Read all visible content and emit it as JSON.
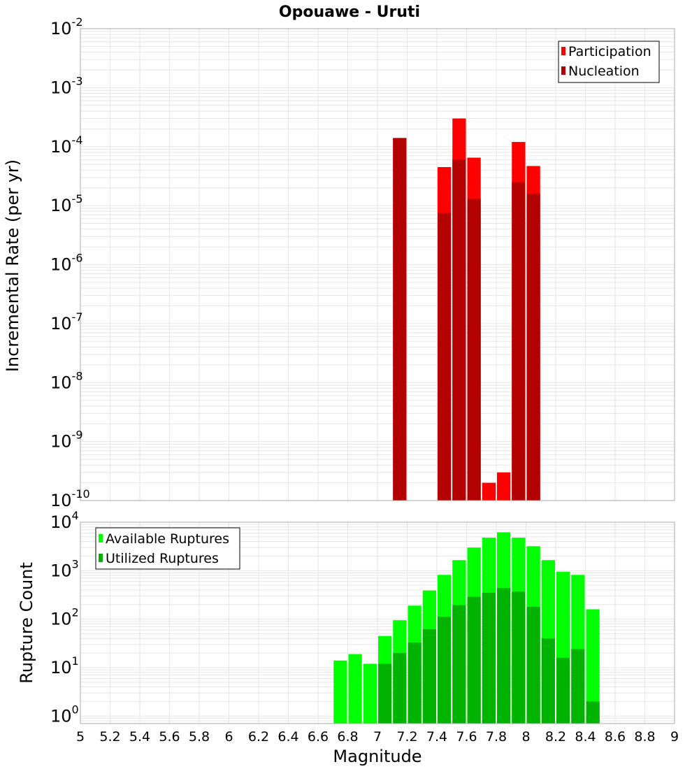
{
  "chart_data": [
    {
      "type": "bar",
      "title": "Opouawe - Uruti",
      "xlabel": "",
      "ylabel": "Incremental Rate (per yr)",
      "yscale": "log",
      "ylim": [
        1e-10,
        0.01
      ],
      "xlim": [
        5,
        9
      ],
      "grid": true,
      "legend_position": "top-right",
      "legend": [
        "Participation",
        "Nucleation"
      ],
      "bar_width": 0.1,
      "series": [
        {
          "name": "Participation",
          "color": "#ff0000",
          "x": [
            7.15,
            7.45,
            7.55,
            7.65,
            7.75,
            7.85,
            7.95,
            8.05
          ],
          "values": [
            0.00014,
            4.5e-05,
            0.0003,
            6.5e-05,
            2e-10,
            3e-10,
            0.00012,
            4.7e-05
          ]
        },
        {
          "name": "Nucleation",
          "color": "#b30000",
          "x": [
            7.15,
            7.45,
            7.55,
            7.65,
            7.95,
            8.05
          ],
          "values": [
            0.00014,
            7.5e-06,
            6e-05,
            1.3e-05,
            2.5e-05,
            1.6e-05
          ]
        }
      ]
    },
    {
      "type": "bar",
      "title": "",
      "xlabel": "Magnitude",
      "ylabel": "Rupture Count",
      "yscale": "log",
      "ylim": [
        0.7,
        10000
      ],
      "xlim": [
        5,
        9
      ],
      "grid": true,
      "legend_position": "top-left",
      "legend": [
        "Available Ruptures",
        "Utilized Ruptures"
      ],
      "bar_width": 0.1,
      "series": [
        {
          "name": "Available Ruptures",
          "color": "#00ff00",
          "x": [
            6.75,
            6.85,
            6.95,
            7.05,
            7.15,
            7.25,
            7.35,
            7.45,
            7.55,
            7.65,
            7.75,
            7.85,
            7.95,
            8.05,
            8.15,
            8.25,
            8.35,
            8.45
          ],
          "values": [
            14,
            19,
            12,
            45,
            95,
            190,
            390,
            820,
            1650,
            3000,
            4800,
            6200,
            4800,
            3200,
            1650,
            950,
            820,
            160
          ]
        },
        {
          "name": "Utilized Ruptures",
          "color": "#00b300",
          "x": [
            7.05,
            7.15,
            7.25,
            7.35,
            7.45,
            7.55,
            7.65,
            7.75,
            7.85,
            7.95,
            8.05,
            8.15,
            8.25,
            8.35,
            8.45
          ],
          "values": [
            12,
            20,
            33,
            62,
            112,
            195,
            290,
            350,
            440,
            370,
            180,
            40,
            16,
            24,
            2
          ]
        }
      ]
    }
  ],
  "x_ticks": [
    "5",
    "5.2",
    "5.4",
    "5.6",
    "5.8",
    "6",
    "6.2",
    "6.4",
    "6.6",
    "6.8",
    "7",
    "7.2",
    "7.4",
    "7.6",
    "7.8",
    "8",
    "8.2",
    "8.4",
    "8.6",
    "8.8",
    "9"
  ],
  "top_y_ticks": [
    {
      "base": "10",
      "exp": "-2",
      "v": -2
    },
    {
      "base": "10",
      "exp": "-3",
      "v": -3
    },
    {
      "base": "10",
      "exp": "-4",
      "v": -4
    },
    {
      "base": "10",
      "exp": "-5",
      "v": -5
    },
    {
      "base": "10",
      "exp": "-6",
      "v": -6
    },
    {
      "base": "10",
      "exp": "-7",
      "v": -7
    },
    {
      "base": "10",
      "exp": "-8",
      "v": -8
    },
    {
      "base": "10",
      "exp": "-9",
      "v": -9
    },
    {
      "base": "10",
      "exp": "-10",
      "v": -10
    }
  ],
  "bottom_y_ticks": [
    {
      "base": "10",
      "exp": "4",
      "v": 4
    },
    {
      "base": "10",
      "exp": "3",
      "v": 3
    },
    {
      "base": "10",
      "exp": "2",
      "v": 2
    },
    {
      "base": "10",
      "exp": "1",
      "v": 1
    },
    {
      "base": "10",
      "exp": "0",
      "v": 0
    }
  ],
  "colors": {
    "plot_border": "#aaaaaa",
    "grid": "#e6e6e6",
    "bar_separator": "#ffffff"
  }
}
